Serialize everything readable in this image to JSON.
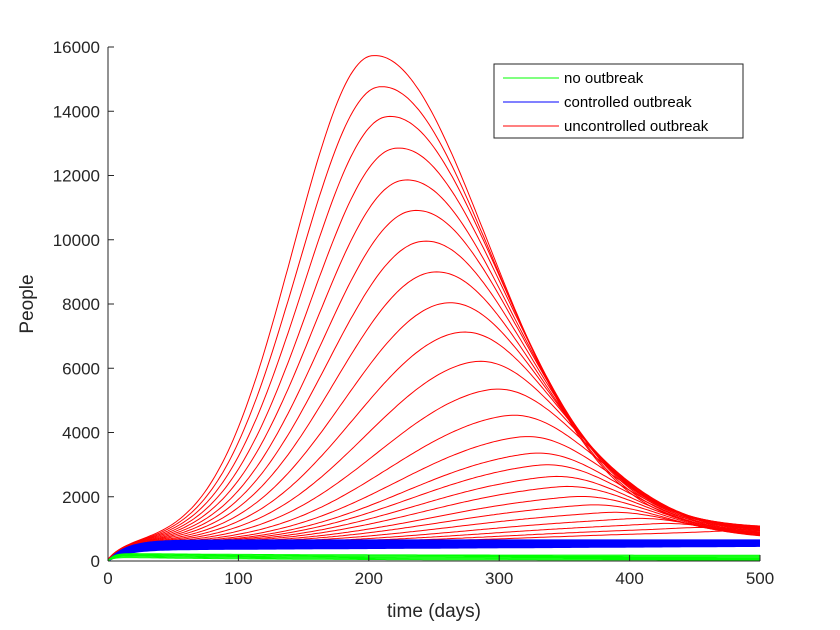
{
  "chart_data": {
    "type": "line",
    "title": "",
    "xlabel": "time (days)",
    "ylabel": "People",
    "xlim": [
      0,
      500
    ],
    "ylim": [
      0,
      16000
    ],
    "x_ticks": [
      0,
      100,
      200,
      300,
      400,
      500
    ],
    "y_ticks": [
      0,
      2000,
      4000,
      6000,
      8000,
      10000,
      12000,
      14000,
      16000
    ],
    "grid": false,
    "legend_position": "top-right",
    "legend": [
      {
        "label": "no outbreak",
        "color": "#00ff00"
      },
      {
        "label": "controlled outbreak",
        "color": "#0000ff"
      },
      {
        "label": "uncontrolled outbreak",
        "color": "#ff0000"
      }
    ],
    "series_groups": [
      {
        "name": "no outbreak",
        "color": "#00ff00",
        "curves": [
          {
            "start": 120,
            "end": 30
          },
          {
            "start": 150,
            "end": 60
          },
          {
            "start": 180,
            "end": 90
          },
          {
            "start": 200,
            "end": 120
          },
          {
            "start": 220,
            "end": 150
          },
          {
            "start": 240,
            "end": 180
          }
        ]
      },
      {
        "name": "controlled outbreak",
        "color": "#0000ff",
        "curves": [
          {
            "plateau": 350,
            "end": 460
          },
          {
            "plateau": 380,
            "end": 480
          },
          {
            "plateau": 410,
            "end": 500
          },
          {
            "plateau": 440,
            "end": 520
          },
          {
            "plateau": 470,
            "end": 540
          },
          {
            "plateau": 500,
            "end": 560
          },
          {
            "plateau": 530,
            "end": 580
          },
          {
            "plateau": 560,
            "end": 600
          },
          {
            "plateau": 590,
            "end": 620
          },
          {
            "plateau": 620,
            "end": 640
          },
          {
            "plateau": 650,
            "end": 650
          }
        ]
      },
      {
        "name": "uncontrolled outbreak",
        "color": "#ff0000",
        "curves": [
          {
            "peak_day": 202,
            "peak": 15500,
            "end": 1200
          },
          {
            "peak_day": 207,
            "peak": 14500,
            "end": 1300
          },
          {
            "peak_day": 213,
            "peak": 13550,
            "end": 1380
          },
          {
            "peak_day": 219,
            "peak": 12550,
            "end": 1430
          },
          {
            "peak_day": 225,
            "peak": 11550,
            "end": 1450
          },
          {
            "peak_day": 232,
            "peak": 10600,
            "end": 1450
          },
          {
            "peak_day": 239,
            "peak": 9650,
            "end": 1430
          },
          {
            "peak_day": 247,
            "peak": 8700,
            "end": 1400
          },
          {
            "peak_day": 257,
            "peak": 7750,
            "end": 1360
          },
          {
            "peak_day": 268,
            "peak": 6850,
            "end": 1320
          },
          {
            "peak_day": 280,
            "peak": 5950,
            "end": 1280
          },
          {
            "peak_day": 293,
            "peak": 5100,
            "end": 1230
          },
          {
            "peak_day": 305,
            "peak": 4300,
            "end": 1180
          },
          {
            "peak_day": 315,
            "peak": 3650,
            "end": 1130
          },
          {
            "peak_day": 323,
            "peak": 3150,
            "end": 1080
          },
          {
            "peak_day": 330,
            "peak": 2800,
            "end": 1030
          },
          {
            "peak_day": 337,
            "peak": 2450,
            "end": 990
          },
          {
            "peak_day": 345,
            "peak": 2150,
            "end": 950
          },
          {
            "peak_day": 355,
            "peak": 1850,
            "end": 910
          },
          {
            "peak_day": 365,
            "peak": 1600,
            "end": 870
          },
          {
            "peak_day": 380,
            "peak": 1380,
            "end": 830
          },
          {
            "peak_day": 400,
            "peak": 1200,
            "end": 800
          },
          {
            "peak_day": 420,
            "peak": 1050,
            "end": 780
          },
          {
            "peak_day": 445,
            "peak": 930,
            "end": 760
          },
          {
            "peak_day": 470,
            "peak": 830,
            "end": 740
          }
        ]
      }
    ]
  }
}
